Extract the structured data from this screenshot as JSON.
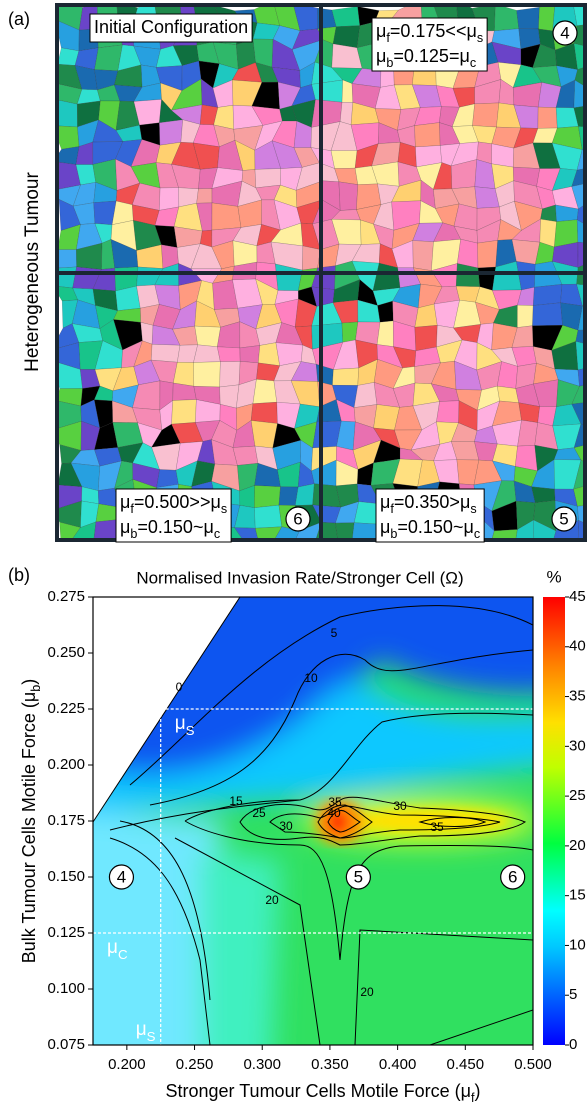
{
  "panel_a": {
    "label": "(a)",
    "ylabel": "Heterogeneous Tumour",
    "quadrants": [
      {
        "lines": [
          [
            "Initial Configuration"
          ]
        ],
        "badge": null
      },
      {
        "lines": [
          [
            "μ",
            "f",
            "=0.175<<μ",
            "s"
          ],
          [
            "μ",
            "b",
            "=0.125=μ",
            "c"
          ]
        ],
        "badge": "4"
      },
      {
        "lines": [
          [
            "μ",
            "f",
            "=0.500>>μ",
            "s"
          ],
          [
            "μ",
            "b",
            "=0.150~μ",
            "c"
          ]
        ],
        "badge": "6"
      },
      {
        "lines": [
          [
            "μ",
            "f",
            "=0.350>μ",
            "s"
          ],
          [
            "μ",
            "b",
            "=0.150~μ",
            "c"
          ]
        ],
        "badge": "5"
      }
    ]
  },
  "chart_data": {
    "type": "contour",
    "label": "(b)",
    "title": "Normalised Invasion Rate/Stronger Cell (Ω)",
    "xlabel": [
      "Stronger Tumour Cells Motile Force (μ",
      "f",
      ")"
    ],
    "ylabel": [
      "Bulk Tumour Cells Motile Force (μ",
      "b",
      ")"
    ],
    "xlim": [
      0.175,
      0.5
    ],
    "xticks": [
      {
        "value": 0.2,
        "label": "0.200"
      },
      {
        "value": 0.25,
        "label": "0.250"
      },
      {
        "value": 0.3,
        "label": "0.300"
      },
      {
        "value": 0.35,
        "label": "0.350"
      },
      {
        "value": 0.4,
        "label": "0.400"
      },
      {
        "value": 0.45,
        "label": "0.450"
      },
      {
        "value": 0.5,
        "label": "0.500"
      }
    ],
    "ylim": [
      0.075,
      0.275
    ],
    "yticks": [
      {
        "value": 0.075,
        "label": "0.075"
      },
      {
        "value": 0.1,
        "label": "0.100"
      },
      {
        "value": 0.125,
        "label": "0.125"
      },
      {
        "value": 0.15,
        "label": "0.150"
      },
      {
        "value": 0.175,
        "label": "0.175"
      },
      {
        "value": 0.2,
        "label": "0.200"
      },
      {
        "value": 0.225,
        "label": "0.225"
      },
      {
        "value": 0.25,
        "label": "0.250"
      },
      {
        "value": 0.275,
        "label": "0.275"
      }
    ],
    "colorbar": {
      "label": "%",
      "lim": [
        0,
        45
      ],
      "ticks": [
        0,
        5,
        10,
        15,
        20,
        25,
        30,
        35,
        40,
        45
      ]
    },
    "contour_labels": [
      0,
      5,
      10,
      15,
      20,
      25,
      30,
      35,
      40,
      30,
      35,
      20
    ],
    "hlines": [
      {
        "text": [
          "μ",
          "S"
        ],
        "value": 0.225
      },
      {
        "text": [
          "μ",
          "C"
        ],
        "value": 0.125
      }
    ],
    "vlines": [
      {
        "text": [
          "μ",
          "S"
        ],
        "value": 0.225
      }
    ],
    "markers": [
      {
        "label": "4",
        "x": 0.196,
        "y": 0.15
      },
      {
        "label": "5",
        "x": 0.371,
        "y": 0.15
      },
      {
        "label": "6",
        "x": 0.485,
        "y": 0.15
      }
    ]
  }
}
